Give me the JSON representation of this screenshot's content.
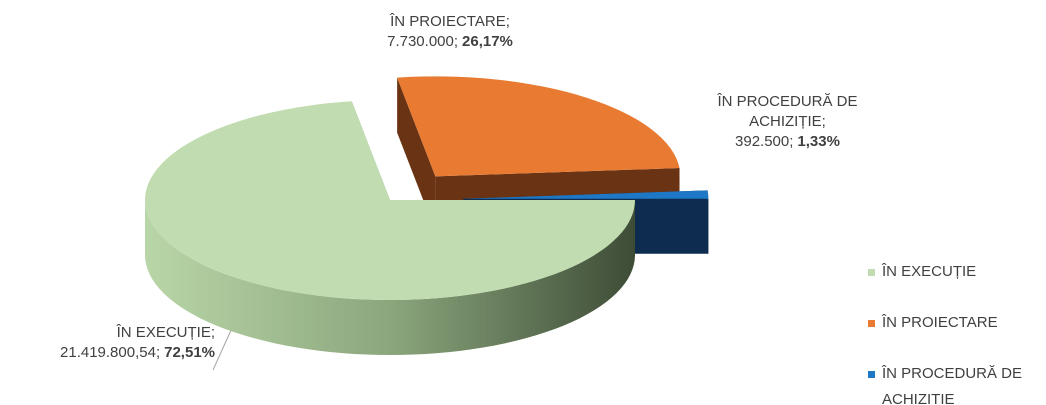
{
  "chart_data": {
    "type": "pie",
    "label_names": [
      "ÎN EXECUȚIE",
      "ÎN PROIECTARE",
      "ÎN PROCEDURĂ DE ACHIZIȚIE"
    ],
    "label_separator": ";",
    "series": [
      {
        "categories": [
          "ÎN EXECUȚIE",
          "ÎN PROIECTARE",
          "ÎN PROCEDURĂ DE ACHIZITIE"
        ],
        "values": [
          21419800.54,
          7730000,
          392500
        ],
        "value_labels": [
          "21.419.800,54",
          "7.730.000",
          "392.500"
        ],
        "percents": [
          72.51,
          26.17,
          1.33
        ],
        "percent_labels": [
          "72,51%",
          "26,17%",
          "1,33%"
        ],
        "colors": [
          "#c0dcb0",
          "#e87b31",
          "#1f78c6"
        ],
        "side_colors": [
          "#6f8a62",
          "#6a3414",
          "#0d2c4f"
        ]
      }
    ],
    "legend": "right"
  }
}
